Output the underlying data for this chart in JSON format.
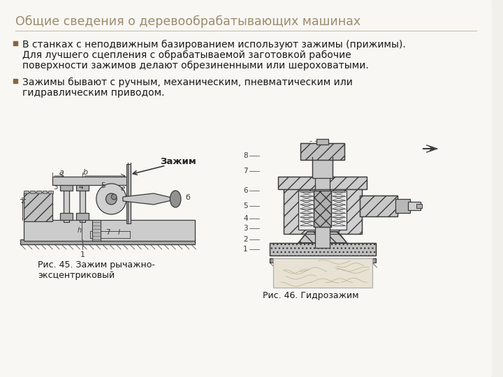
{
  "title": "Общие сведения о деревообрабатывающих машинах",
  "title_color": "#9B8B6E",
  "title_fontsize": 12.5,
  "background_color": "#F2F0EA",
  "bullet_color": "#8B6340",
  "bullet1_line1": "В станках с неподвижным базированием используют зажимы (прижимы).",
  "bullet1_line2": "Для лучшего сцепления с обрабатываемой заготовкой рабочие",
  "bullet1_line3": "поверхности зажимов делают обрезиненными или шероховатыми.",
  "bullet2_line1": "Зажимы бывают с ручным, механическим, пневматическим или",
  "bullet2_line2": "гидравлическим приводом.",
  "fig1_label": "Рис. 45. Зажим рычажно-\nэксцентриковый",
  "fig2_label": "Рис. 46. Гидрозажим",
  "fig1_annotation": "Зажим",
  "text_fontsize": 10.0,
  "caption_fontsize": 9.0,
  "line_color": "#3a3a3a",
  "fill_light": "#d8d8d8",
  "fill_medium": "#b8b8b8",
  "fill_dark": "#888888",
  "hatch_color": "#555555"
}
